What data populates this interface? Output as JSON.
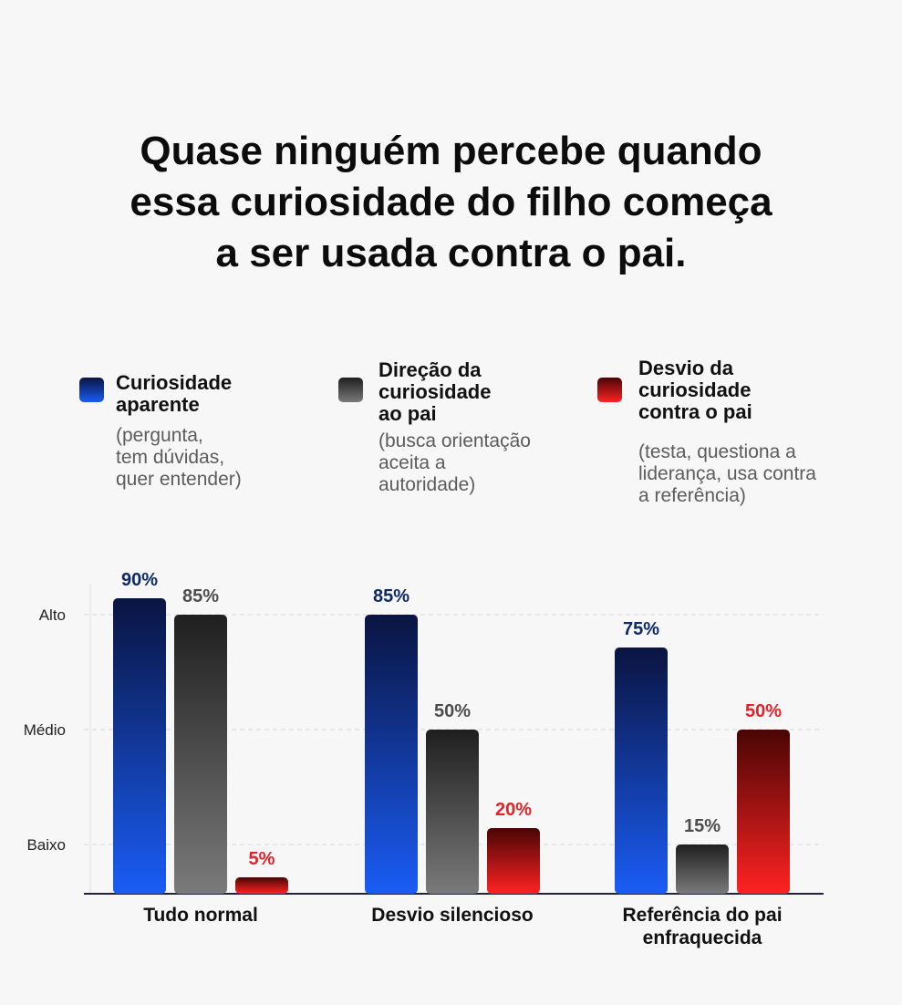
{
  "title": {
    "lines": [
      "Quase ninguém percebe quando",
      "essa curiosidade do filho começa",
      "a ser usada contra o pai."
    ]
  },
  "legend": [
    {
      "name_lines": [
        "Curiosidade",
        "aparente"
      ],
      "desc_lines": [
        "(pergunta,",
        "tem dúvidas,",
        "quer entender)"
      ],
      "color_top": "#0a1440",
      "color_bottom": "#1a5cf5"
    },
    {
      "name_lines": [
        "Direção da",
        "curiosidade",
        "ao pai"
      ],
      "desc_lines": [
        "(busca orientação",
        "aceita a",
        "autoridade)"
      ],
      "color_top": "#1f1f1f",
      "color_bottom": "#7a7a7a"
    },
    {
      "name_lines": [
        "Desvio da",
        "curiosidade",
        "contra o pai"
      ],
      "desc_lines": [
        "(testa, questiona a",
        "liderança, usa contra",
        "a referência)"
      ],
      "color_top": "#4a0505",
      "color_bottom": "#ff2222"
    }
  ],
  "chart_data": {
    "type": "bar",
    "categories": [
      [
        "Tudo normal"
      ],
      [
        "Desvio silencioso"
      ],
      [
        "Referência do pai",
        "enfraquecida"
      ]
    ],
    "series": [
      {
        "name": "Curiosidade aparente",
        "values": [
          90,
          85,
          75
        ],
        "labels": [
          "90%",
          "85%",
          "75%"
        ],
        "label_color": "#0d2a6b"
      },
      {
        "name": "Direção da curiosidade ao pai",
        "values": [
          85,
          50,
          15
        ],
        "labels": [
          "85%",
          "50%",
          "15%"
        ],
        "label_color": "#4d4d4d"
      },
      {
        "name": "Desvio da curiosidade contra o pai",
        "values": [
          5,
          20,
          50
        ],
        "labels": [
          "5%",
          "20%",
          "50%"
        ],
        "label_color": "#e0242a"
      }
    ],
    "yticks": [
      {
        "label": "Baixo",
        "value": 15
      },
      {
        "label": "Médio",
        "value": 50
      },
      {
        "label": "Alto",
        "value": 85
      }
    ],
    "ylim": [
      0,
      100
    ],
    "grid": true,
    "xlabel": "",
    "ylabel": ""
  }
}
